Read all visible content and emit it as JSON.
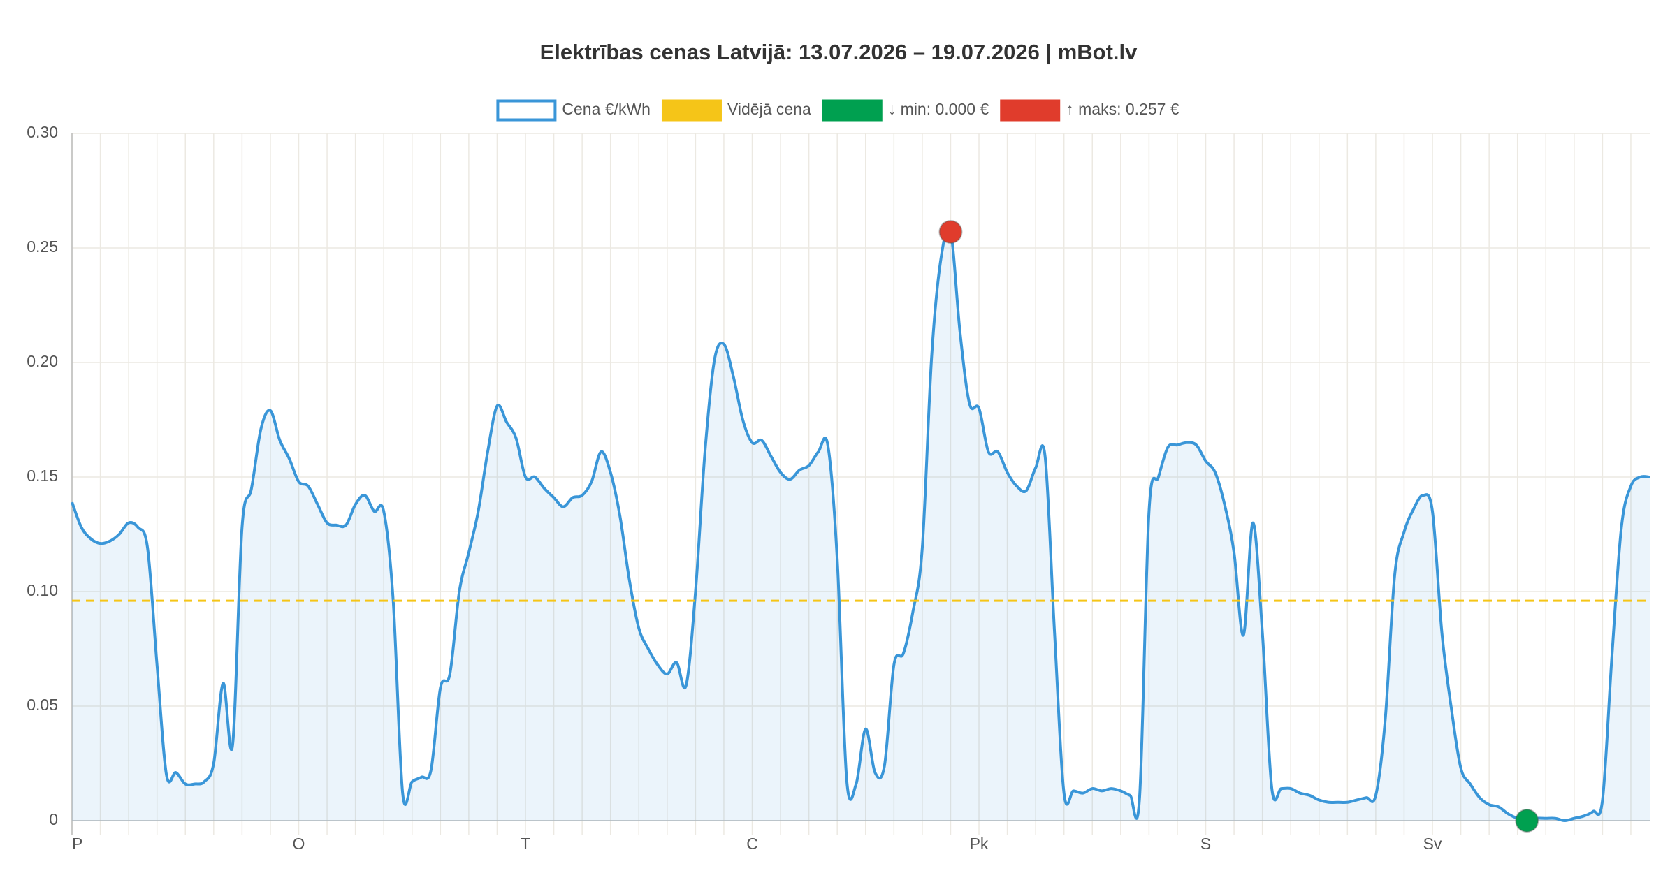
{
  "chart_data": {
    "type": "line",
    "title": "Elektrības cenas Latvijā: 13.07.2026 – 19.07.2026 | mBot.lv",
    "categories": [
      "P",
      null,
      null,
      null,
      null,
      null,
      null,
      null,
      null,
      null,
      null,
      null,
      null,
      null,
      null,
      null,
      null,
      null,
      null,
      null,
      null,
      null,
      null,
      null,
      "O",
      null,
      null,
      null,
      null,
      null,
      null,
      null,
      null,
      null,
      null,
      null,
      null,
      null,
      null,
      null,
      null,
      null,
      null,
      null,
      null,
      null,
      null,
      null,
      "T",
      null,
      null,
      null,
      null,
      null,
      null,
      null,
      null,
      null,
      null,
      null,
      null,
      null,
      null,
      null,
      null,
      null,
      null,
      null,
      null,
      null,
      null,
      null,
      "C",
      null,
      null,
      null,
      null,
      null,
      null,
      null,
      null,
      null,
      null,
      null,
      null,
      null,
      null,
      null,
      null,
      null,
      null,
      null,
      null,
      null,
      null,
      null,
      "Pk",
      null,
      null,
      null,
      null,
      null,
      null,
      null,
      null,
      null,
      null,
      null,
      null,
      null,
      null,
      null,
      null,
      null,
      null,
      null,
      null,
      null,
      null,
      null,
      "S",
      null,
      null,
      null,
      null,
      null,
      null,
      null,
      null,
      null,
      null,
      null,
      null,
      null,
      null,
      null,
      null,
      null,
      null,
      null,
      null,
      null,
      null,
      null,
      "Sv",
      null,
      null,
      null,
      null,
      null,
      null,
      null,
      null,
      null,
      null,
      null,
      null,
      null,
      null,
      null,
      null,
      null,
      null,
      null,
      null,
      null,
      null,
      null
    ],
    "series": [
      {
        "name": "Cena €/kWh",
        "color": "#3a96d8",
        "values": [
          0.139,
          0.128,
          0.123,
          0.121,
          0.122,
          0.125,
          0.13,
          0.128,
          0.119,
          0.068,
          0.02,
          0.021,
          0.016,
          0.016,
          0.017,
          0.025,
          0.06,
          0.033,
          0.128,
          0.145,
          0.171,
          0.179,
          0.166,
          0.158,
          0.148,
          0.146,
          0.138,
          0.13,
          0.129,
          0.129,
          0.138,
          0.142,
          0.135,
          0.135,
          0.096,
          0.012,
          0.017,
          0.019,
          0.022,
          0.058,
          0.064,
          0.1,
          0.117,
          0.135,
          0.161,
          0.181,
          0.174,
          0.167,
          0.15,
          0.15,
          0.145,
          0.141,
          0.137,
          0.141,
          0.142,
          0.148,
          0.161,
          0.152,
          0.133,
          0.105,
          0.084,
          0.075,
          0.068,
          0.064,
          0.069,
          0.059,
          0.1,
          0.161,
          0.201,
          0.208,
          0.194,
          0.175,
          0.165,
          0.166,
          0.159,
          0.152,
          0.149,
          0.153,
          0.155,
          0.161,
          0.164,
          0.114,
          0.018,
          0.016,
          0.04,
          0.021,
          0.024,
          0.068,
          0.073,
          0.091,
          0.119,
          0.203,
          0.246,
          0.257,
          0.213,
          0.182,
          0.18,
          0.161,
          0.161,
          0.152,
          0.146,
          0.144,
          0.154,
          0.159,
          0.082,
          0.012,
          0.013,
          0.012,
          0.014,
          0.013,
          0.014,
          0.013,
          0.011,
          0.01,
          0.135,
          0.15,
          0.163,
          0.164,
          0.165,
          0.164,
          0.157,
          0.152,
          0.138,
          0.117,
          0.081,
          0.13,
          0.082,
          0.014,
          0.014,
          0.014,
          0.012,
          0.011,
          0.009,
          0.008,
          0.008,
          0.008,
          0.009,
          0.01,
          0.011,
          0.044,
          0.107,
          0.126,
          0.136,
          0.142,
          0.135,
          0.082,
          0.049,
          0.023,
          0.016,
          0.01,
          0.007,
          0.006,
          0.003,
          0.001,
          0.0,
          0.001,
          0.001,
          0.001,
          0.0,
          0.001,
          0.002,
          0.004,
          0.009,
          0.072,
          0.128,
          0.146,
          0.15,
          0.15
        ]
      }
    ],
    "average": {
      "name": "Vidējā cena",
      "value": 0.096,
      "color": "#f5c518"
    },
    "min_point": {
      "label": "↓ min: 0.000 €",
      "category_index": 154,
      "value": 0.0,
      "color": "#00a050"
    },
    "max_point": {
      "label": "↑ maks: 0.257 €",
      "category_index": 93,
      "value": 0.257,
      "color": "#e03c2c"
    },
    "ylim": [
      0,
      0.3
    ],
    "yticks": [
      0,
      0.05,
      {
        "value": 0.1,
        "label": "0.10"
      },
      0.15,
      {
        "value": 0.2,
        "label": "0.20"
      },
      0.25,
      {
        "value": 0.3,
        "label": "0.30"
      }
    ],
    "grid": true,
    "legend": "top"
  }
}
